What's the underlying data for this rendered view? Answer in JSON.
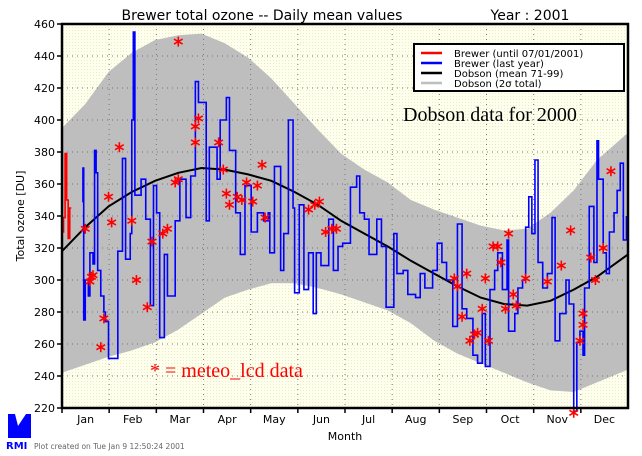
{
  "chart_data": {
    "type": "line",
    "title": "Brewer total ozone -- Daily mean values",
    "year_label": "Year : 2001",
    "xlabel": "Month",
    "ylabel": "Total ozone [DU]",
    "xlim": [
      0,
      365
    ],
    "ylim": [
      220,
      460
    ],
    "yticks": [
      220,
      240,
      260,
      280,
      300,
      320,
      340,
      360,
      380,
      400,
      420,
      440,
      460
    ],
    "month_labels": [
      "Jan",
      "Feb",
      "Mar",
      "Apr",
      "May",
      "Jun",
      "Jul",
      "Aug",
      "Sep",
      "Oct",
      "Nov",
      "Dec"
    ],
    "grid": true,
    "legend_position": "top-right",
    "legend": [
      {
        "label": "Brewer (until 07/01/2001)",
        "color": "#ff0000"
      },
      {
        "label": "Brewer (last year)",
        "color": "#0000ff"
      },
      {
        "label": "Dobson (mean 71-99)",
        "color": "#000000"
      },
      {
        "label": "Dobson (2σ total)",
        "color": "#bebebe"
      }
    ],
    "annotations": {
      "dobson_note": "Dobson data for 2000",
      "meteo_note": "* = meteo_lcd data"
    },
    "series": [
      {
        "name": "Brewer (until 07/01/2001)",
        "color": "#ff0000",
        "x": [
          0,
          1,
          2,
          3,
          4,
          5,
          6
        ],
        "y": [
          330,
          339,
          379,
          350,
          326,
          345,
          345
        ]
      },
      {
        "name": "Brewer (last year)",
        "color": "#0000ff",
        "x": [
          13,
          13.5,
          14,
          15,
          17,
          18,
          20,
          21,
          22,
          23,
          25,
          27,
          28,
          30,
          34,
          36,
          39,
          41,
          44,
          45,
          46,
          47,
          51,
          54,
          57,
          59,
          61,
          63,
          66,
          68,
          73,
          76,
          80,
          83,
          86,
          88,
          93,
          95,
          100,
          102,
          106,
          108,
          112,
          115,
          118,
          122,
          126,
          130,
          133,
          134,
          137,
          141,
          143,
          146,
          149,
          150,
          153,
          156,
          159,
          162,
          164,
          167,
          172,
          175,
          178,
          181,
          186,
          190,
          192,
          195,
          198,
          203,
          206,
          209,
          214,
          216,
          220,
          223,
          228,
          231,
          234,
          239,
          242,
          245,
          248,
          252,
          255,
          258,
          261,
          265,
          268,
          271,
          273,
          276,
          279,
          281,
          284,
          287,
          288,
          292,
          294,
          297,
          299,
          301,
          303,
          305,
          307,
          310,
          313,
          316,
          318,
          321,
          325,
          327,
          330,
          332,
          334,
          336,
          337,
          340,
          343,
          345,
          346,
          349,
          351,
          353,
          356,
          358,
          360,
          362,
          364
        ],
        "y": [
          349,
          370,
          275,
          300,
          290,
          317,
          310,
          381,
          367,
          306,
          290,
          280,
          274,
          251,
          251,
          318,
          376,
          313,
          329,
          400,
          455,
          353,
          363,
          338,
          284,
          359,
          342,
          264,
          316,
          290,
          337,
          363,
          339,
          365,
          424,
          411,
          337,
          383,
          363,
          400,
          414,
          381,
          342,
          316,
          359,
          330,
          342,
          337,
          342,
          317,
          371,
          306,
          329,
          400,
          345,
          292,
          347,
          294,
          317,
          279,
          317,
          309,
          338,
          306,
          321,
          323,
          358,
          365,
          342,
          338,
          316,
          338,
          321,
          283,
          329,
          304,
          306,
          291,
          289,
          304,
          295,
          306,
          323,
          311,
          300,
          271,
          335,
          282,
          276,
          253,
          248,
          279,
          246,
          294,
          306,
          317,
          294,
          325,
          268,
          279,
          295,
          300,
          333,
          352,
          329,
          375,
          311,
          295,
          304,
          339,
          262,
          279,
          300,
          285,
          218,
          261,
          268,
          253,
          295,
          346,
          311,
          387,
          363,
          317,
          304,
          330,
          342,
          356,
          373,
          325,
          340
        ]
      },
      {
        "name": "Dobson (mean 71-99)",
        "color": "#000000",
        "x": [
          0,
          15,
          30,
          45,
          60,
          75,
          90,
          105,
          120,
          135,
          150,
          165,
          180,
          195,
          210,
          225,
          240,
          255,
          270,
          285,
          300,
          315,
          330,
          345,
          365
        ],
        "y": [
          318,
          333,
          346,
          355,
          362,
          367,
          370,
          369,
          366,
          362,
          355,
          347,
          337,
          329,
          321,
          312,
          304,
          296,
          289,
          285,
          284,
          287,
          294,
          302,
          316
        ]
      },
      {
        "name": "Dobson (2σ total)",
        "color": "#bebebe",
        "x": [
          0,
          15,
          30,
          45,
          60,
          75,
          90,
          105,
          120,
          135,
          150,
          165,
          180,
          195,
          210,
          225,
          240,
          255,
          270,
          285,
          300,
          315,
          330,
          345,
          365
        ],
        "upper": [
          395,
          410,
          430,
          442,
          450,
          453,
          454,
          448,
          439,
          426,
          410,
          394,
          379,
          369,
          361,
          350,
          344,
          339,
          334,
          331,
          332,
          342,
          356,
          375,
          392
        ],
        "lower": [
          242,
          247,
          252,
          256,
          261,
          269,
          279,
          289,
          294,
          298,
          298,
          295,
          291,
          286,
          281,
          273,
          262,
          254,
          248,
          242,
          236,
          231,
          230,
          236,
          244
        ]
      },
      {
        "name": "meteo_lcd data",
        "color": "#ff0000",
        "marker": "*",
        "x": [
          75,
          37,
          30,
          32,
          15,
          45,
          18,
          19,
          20,
          48,
          27,
          55,
          25,
          58,
          65,
          68,
          73,
          75,
          86,
          88,
          86,
          101,
          104,
          106,
          108,
          119,
          113,
          116,
          123,
          126,
          129,
          131,
          159,
          163,
          166,
          170,
          174,
          177,
          253,
          255,
          261,
          258,
          263,
          266,
          268,
          275,
          271,
          273,
          278,
          281,
          283,
          288,
          286,
          291,
          293,
          299,
          313,
          322,
          328,
          330,
          334,
          336,
          336,
          341,
          344,
          349,
          354
        ],
        "y": [
          449,
          383,
          352,
          336,
          332,
          337,
          299,
          302,
          303,
          300,
          276,
          283,
          258,
          324,
          329,
          332,
          361,
          363,
          396,
          401,
          386,
          386,
          369,
          354,
          347,
          361,
          352,
          350,
          349,
          359,
          372,
          339,
          344,
          347,
          349,
          330,
          332,
          332,
          301,
          296,
          304,
          277,
          262,
          266,
          267,
          262,
          282,
          301,
          321,
          321,
          311,
          329,
          282,
          291,
          284,
          301,
          299,
          309,
          331,
          217,
          262,
          272,
          279,
          314,
          300,
          320,
          368
        ]
      }
    ]
  },
  "footer": {
    "logo_text": "RMI",
    "created": "Plot created on Tue Jan  9 12:50:24 2001"
  }
}
